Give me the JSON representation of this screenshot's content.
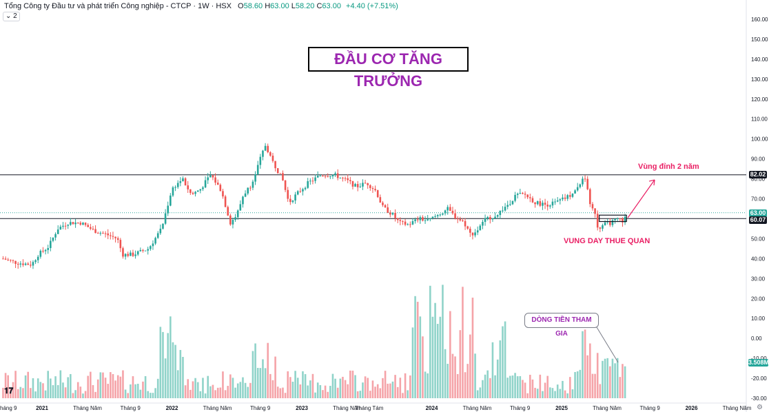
{
  "header": {
    "title": "Tổng Công ty Đầu tư và phát triển Công nghiệp - CTCP · 1W · HSX",
    "o_label": "O",
    "o_value": "58.60",
    "h_label": "H",
    "h_value": "63.00",
    "l_label": "L",
    "l_value": "58.20",
    "c_label": "C",
    "c_value": "63.00",
    "change": "+4.40 (+7.51%)",
    "collapse": "⌄ 2"
  },
  "annotations": {
    "title_box": "ĐẦU CƠ TĂNG TRƯỞNG",
    "peak_zone": "Vùng đỉnh 2 năm",
    "bottom_zone": "VUNG DAY THUE QUAN",
    "money_flow": "DÒNG TIỀN THAM GIA"
  },
  "price_tags": {
    "resistance": "82.02",
    "last": "63.00",
    "support": "60.07",
    "volume": "3.508M"
  },
  "colors": {
    "up": "#26a69a",
    "down": "#ef5350",
    "vol_up": "#8fd3c9",
    "vol_down": "#f5a3a8",
    "annotation_pink": "#e91e63",
    "annotation_purple": "#9c27b0"
  },
  "chart_data": {
    "type": "candlestick",
    "interval": "1W",
    "price_axis": {
      "range": [
        -30,
        160
      ],
      "ticks": [
        "160.00",
        "150.00",
        "140.00",
        "130.00",
        "120.00",
        "110.00",
        "100.00",
        "90.00",
        "80.00",
        "70.00",
        "60.00",
        "50.00",
        "40.00",
        "30.00",
        "20.00",
        "10.00",
        "0.00",
        "-10.00",
        "-20.00",
        "-30.00"
      ]
    },
    "time_axis": {
      "labels": [
        "háng 9",
        "2021",
        "Tháng Năm",
        "Tháng 9",
        "2022",
        "Tháng Năm",
        "Tháng 9",
        "2023",
        "Tháng Năm",
        "Tháng Tám",
        "2024",
        "Tháng Năm",
        "Tháng 9",
        "2025",
        "Tháng Năm",
        "Tháng 9",
        "2026",
        "Tháng Năm"
      ],
      "bold": [
        "2021",
        "2022",
        "2023",
        "2024",
        "2025",
        "2026"
      ]
    },
    "horizontal_lines": [
      82.02,
      60.07
    ],
    "last_price": 63.0,
    "price_path": [
      [
        2020.7,
        40
      ],
      [
        2020.8,
        38
      ],
      [
        2020.92,
        37
      ],
      [
        2020.97,
        42
      ],
      [
        2021.05,
        46
      ],
      [
        2021.12,
        55
      ],
      [
        2021.2,
        58
      ],
      [
        2021.3,
        58
      ],
      [
        2021.4,
        54
      ],
      [
        2021.5,
        52
      ],
      [
        2021.58,
        50
      ],
      [
        2021.62,
        42
      ],
      [
        2021.7,
        42
      ],
      [
        2021.82,
        45
      ],
      [
        2021.92,
        55
      ],
      [
        2022.0,
        75
      ],
      [
        2022.08,
        80
      ],
      [
        2022.15,
        72
      ],
      [
        2022.22,
        75
      ],
      [
        2022.3,
        82
      ],
      [
        2022.38,
        74
      ],
      [
        2022.45,
        58
      ],
      [
        2022.5,
        62
      ],
      [
        2022.55,
        72
      ],
      [
        2022.62,
        78
      ],
      [
        2022.68,
        90
      ],
      [
        2022.72,
        97
      ],
      [
        2022.78,
        88
      ],
      [
        2022.85,
        80
      ],
      [
        2022.9,
        68
      ],
      [
        2022.97,
        73
      ],
      [
        2023.05,
        78
      ],
      [
        2023.15,
        82
      ],
      [
        2023.25,
        82
      ],
      [
        2023.35,
        79
      ],
      [
        2023.42,
        76
      ],
      [
        2023.5,
        78
      ],
      [
        2023.57,
        74
      ],
      [
        2023.62,
        66
      ],
      [
        2023.7,
        62
      ],
      [
        2023.75,
        58
      ],
      [
        2023.82,
        57
      ],
      [
        2023.9,
        60
      ],
      [
        2023.97,
        59
      ],
      [
        2024.05,
        62
      ],
      [
        2024.12,
        65
      ],
      [
        2024.18,
        61
      ],
      [
        2024.25,
        58
      ],
      [
        2024.3,
        52
      ],
      [
        2024.35,
        54
      ],
      [
        2024.42,
        60
      ],
      [
        2024.5,
        62
      ],
      [
        2024.6,
        68
      ],
      [
        2024.65,
        72
      ],
      [
        2024.72,
        72
      ],
      [
        2024.8,
        68
      ],
      [
        2024.88,
        67
      ],
      [
        2024.95,
        68
      ],
      [
        2025.02,
        70
      ],
      [
        2025.1,
        73
      ],
      [
        2025.15,
        79
      ],
      [
        2025.19,
        80
      ],
      [
        2025.22,
        66
      ],
      [
        2025.26,
        63
      ],
      [
        2025.28,
        55
      ],
      [
        2025.32,
        57
      ],
      [
        2025.38,
        58
      ],
      [
        2025.44,
        60
      ],
      [
        2025.48,
        58.6
      ],
      [
        2025.5,
        63
      ]
    ]
  }
}
